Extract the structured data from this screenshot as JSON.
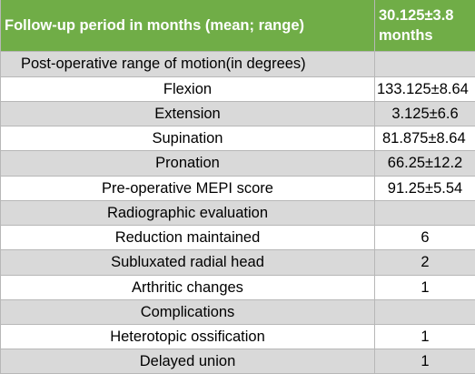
{
  "table": {
    "header": {
      "label": "Follow-up period in months (mean; range)",
      "value": "30.125±3.8 months"
    },
    "rows": [
      {
        "label": "Post-operative range of motion(in degrees)",
        "value": ""
      },
      {
        "label": "Flexion",
        "value": "133.125±8.64"
      },
      {
        "label": "Extension",
        "value": "3.125±6.6"
      },
      {
        "label": "Supination",
        "value": "81.875±8.64"
      },
      {
        "label": "Pronation",
        "value": "66.25±12.2"
      },
      {
        "label": "Pre-operative MEPI score",
        "value": "91.25±5.54"
      },
      {
        "label": "Radiographic evaluation",
        "value": ""
      },
      {
        "label": "Reduction maintained",
        "value": "6"
      },
      {
        "label": "Subluxated radial head",
        "value": "2"
      },
      {
        "label": "Arthritic changes",
        "value": "1"
      },
      {
        "label": "Complications",
        "value": ""
      },
      {
        "label": "Heterotopic ossification",
        "value": "1"
      },
      {
        "label": "Delayed union",
        "value": "1"
      }
    ]
  }
}
